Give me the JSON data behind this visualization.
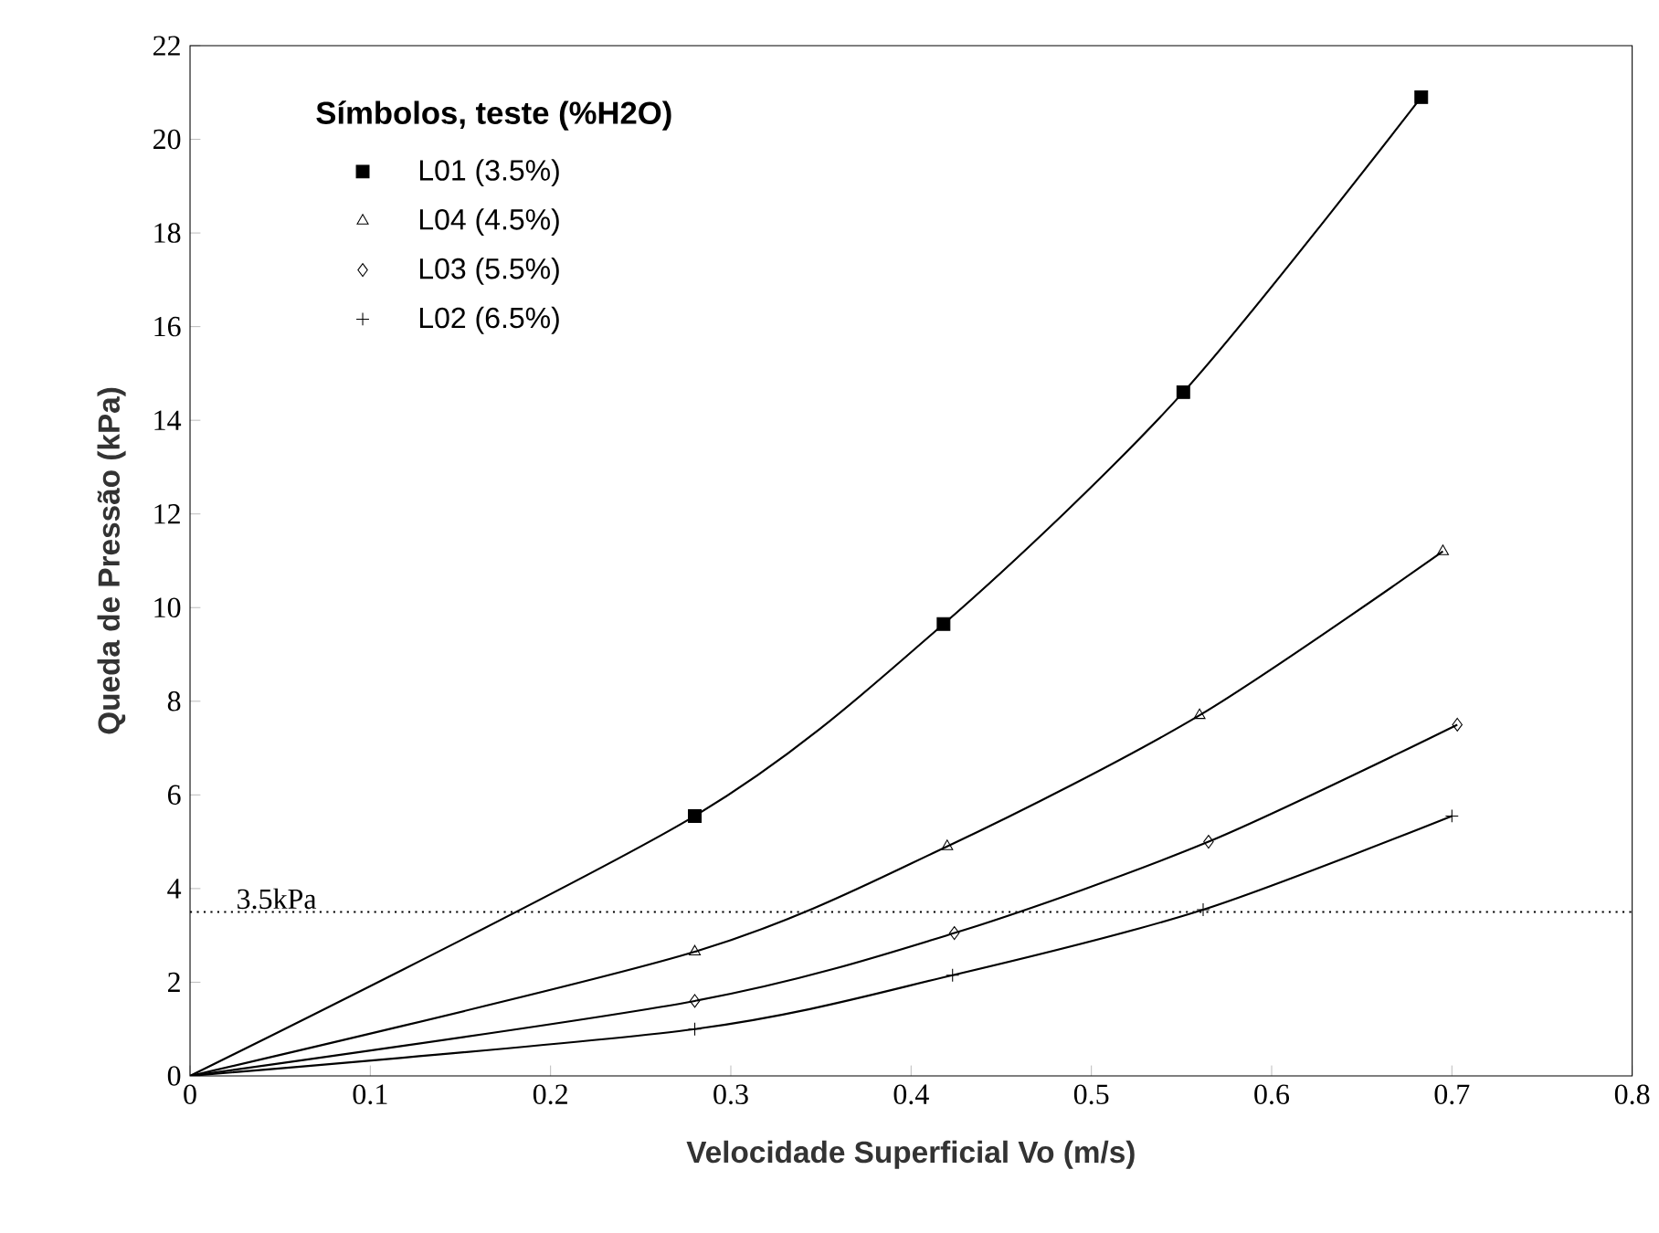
{
  "chart_data": {
    "type": "scatter",
    "xlabel": "Velocidade Superficial Vo (m/s)",
    "ylabel": "Queda de Pressão (kPa)",
    "legend_title": "Símbolos, teste  (%H2O)",
    "legend": "top left",
    "grid": false,
    "xlim": [
      0,
      0.8
    ],
    "ylim": [
      0,
      22
    ],
    "xticks": [
      0,
      0.1,
      0.2,
      0.3,
      0.4,
      0.5,
      0.6,
      0.7,
      0.8
    ],
    "yticks": [
      0,
      2,
      4,
      6,
      8,
      10,
      12,
      14,
      16,
      18,
      20,
      22
    ],
    "ref_lines": [
      {
        "axis": "y",
        "value": 3.5,
        "label": "3.5kPa",
        "line_style": "dotted",
        "color": "#000000"
      }
    ],
    "series": [
      {
        "name": "L01 (3.5%)",
        "marker": "square",
        "color": "#000000",
        "x": [
          0.28,
          0.418,
          0.551,
          0.683
        ],
        "values": [
          5.55,
          9.65,
          14.6,
          20.9
        ]
      },
      {
        "name": "L04 (4.5%)",
        "marker": "triangle",
        "color": "#000000",
        "x": [
          0.28,
          0.42,
          0.56,
          0.695
        ],
        "values": [
          2.65,
          4.9,
          7.7,
          11.2
        ]
      },
      {
        "name": "L03 (5.5%)",
        "marker": "diamond",
        "color": "#000000",
        "x": [
          0.28,
          0.424,
          0.565,
          0.703
        ],
        "values": [
          1.6,
          3.05,
          5.0,
          7.5
        ]
      },
      {
        "name": "L02 (6.5%)",
        "marker": "cross",
        "color": "#000000",
        "x": [
          0.28,
          0.423,
          0.562,
          0.7
        ],
        "values": [
          1.0,
          2.15,
          3.55,
          5.55
        ]
      },
      {
        "type": "line",
        "marker": "none",
        "color": "#000000",
        "x": [
          0,
          0.28,
          0.418,
          0.551,
          0.683
        ],
        "values": [
          0,
          5.55,
          9.65,
          14.6,
          20.9
        ]
      },
      {
        "type": "line",
        "marker": "none",
        "color": "#000000",
        "x": [
          0,
          0.28,
          0.42,
          0.56,
          0.695
        ],
        "values": [
          0,
          2.65,
          4.9,
          7.7,
          11.2
        ]
      },
      {
        "type": "line",
        "marker": "none",
        "color": "#000000",
        "x": [
          0,
          0.28,
          0.424,
          0.565,
          0.703
        ],
        "values": [
          0,
          1.6,
          3.05,
          5.0,
          7.5
        ]
      },
      {
        "type": "line",
        "marker": "none",
        "color": "#000000",
        "x": [
          0,
          0.28,
          0.423,
          0.562,
          0.7
        ],
        "values": [
          0,
          1.0,
          2.15,
          3.55,
          5.55
        ]
      }
    ]
  }
}
